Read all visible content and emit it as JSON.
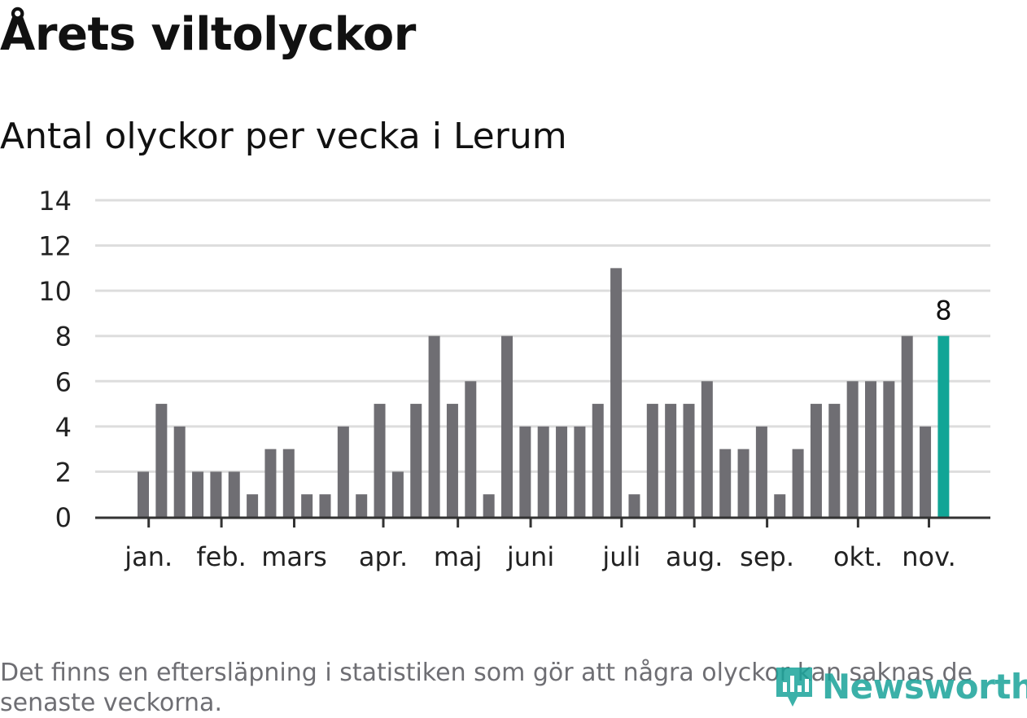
{
  "header": {
    "title": "Årets viltolyckor",
    "subtitle": "Antal olyckor per vecka i Lerum"
  },
  "footer": {
    "note": "Det finns en eftersläpning i statistiken som gör att några olyckor kan saknas de senaste veckorna.",
    "logo_text": "Newsworthy"
  },
  "colors": {
    "bar": "#6f6e73",
    "highlight": "#11a596",
    "grid": "#dddddd",
    "axis": "#333333",
    "logo": "#1aa39a"
  },
  "chart_data": {
    "type": "bar",
    "title": "Antal olyckor per vecka i Lerum",
    "xlabel": "",
    "ylabel": "",
    "ylim": [
      0,
      14
    ],
    "yticks": [
      0,
      2,
      4,
      6,
      8,
      10,
      12,
      14
    ],
    "grid": true,
    "week_values": [
      2,
      5,
      4,
      2,
      2,
      2,
      1,
      3,
      3,
      1,
      1,
      4,
      1,
      5,
      2,
      5,
      8,
      5,
      6,
      1,
      8,
      4,
      4,
      4,
      4,
      5,
      11,
      1,
      5,
      5,
      5,
      6,
      3,
      3,
      4,
      1,
      3,
      5,
      5,
      6,
      6,
      6,
      8,
      4,
      8
    ],
    "highlight_last": true,
    "last_value_label": "8",
    "month_labels": [
      {
        "label": "jan.",
        "at_bar": 0.3
      },
      {
        "label": "feb.",
        "at_bar": 4.3
      },
      {
        "label": "mars",
        "at_bar": 8.3
      },
      {
        "label": "apr.",
        "at_bar": 13.2
      },
      {
        "label": "maj",
        "at_bar": 17.3
      },
      {
        "label": "juni",
        "at_bar": 21.3
      },
      {
        "label": "juli",
        "at_bar": 26.3
      },
      {
        "label": "aug.",
        "at_bar": 30.3
      },
      {
        "label": "sep.",
        "at_bar": 34.3
      },
      {
        "label": "okt.",
        "at_bar": 39.3
      },
      {
        "label": "nov.",
        "at_bar": 43.2
      }
    ]
  }
}
